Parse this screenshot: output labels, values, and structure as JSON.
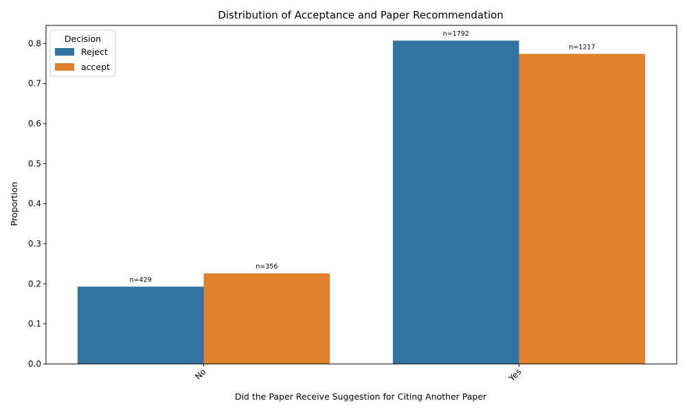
{
  "chart_data": {
    "type": "bar",
    "title": "Distribution of Acceptance and Paper Recommendation",
    "xlabel": "Did the Paper Receive Suggestion for Citing Another Paper",
    "ylabel": "Proportion",
    "categories": [
      "No",
      "Yes"
    ],
    "ylim": [
      0,
      0.845
    ],
    "yticks": [
      0.0,
      0.1,
      0.2,
      0.3,
      0.4,
      0.5,
      0.6,
      0.7,
      0.8
    ],
    "legend": {
      "title": "Decision",
      "placement": "top-left"
    },
    "series": [
      {
        "name": "Reject",
        "color": "#3274a1",
        "values": [
          0.193,
          0.807
        ],
        "labels": [
          "n=429",
          "n=1792"
        ]
      },
      {
        "name": "accept",
        "color": "#e1812c",
        "values": [
          0.226,
          0.774
        ],
        "labels": [
          "n=356",
          "n=1217"
        ]
      }
    ],
    "grid": false
  }
}
